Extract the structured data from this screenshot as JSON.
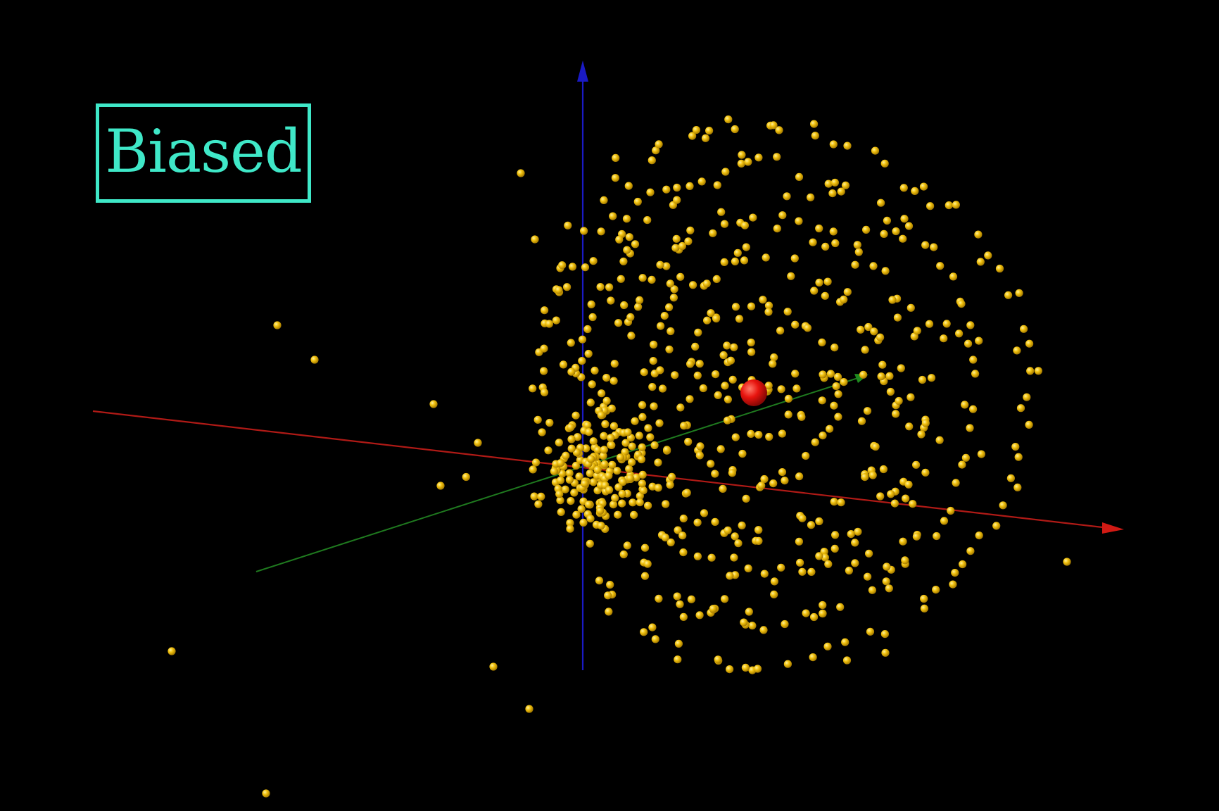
{
  "label": "Biased",
  "colors": {
    "background": "#000000",
    "label": "#3fe8c8",
    "points": "#f2c20f",
    "center_point": "#e8140e",
    "axis_x": "#b01a16",
    "axis_y": "#1f7a1f",
    "axis_z": "#1a1ac4"
  }
}
